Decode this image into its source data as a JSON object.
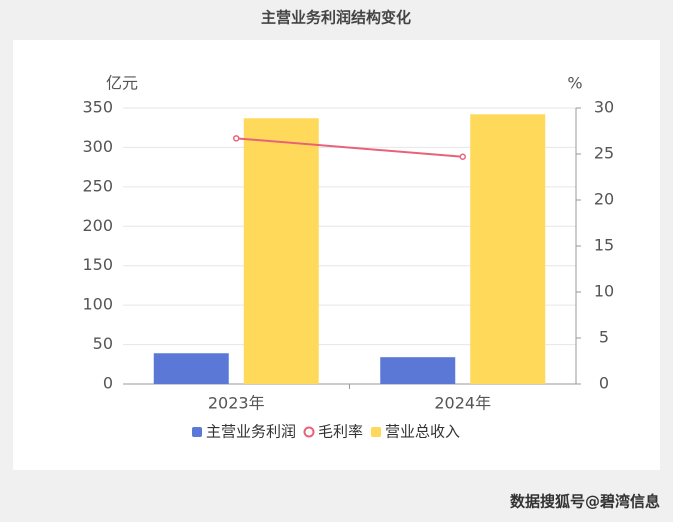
{
  "chart_data": {
    "type": "bar-line",
    "title": "主营业务利润结构变化",
    "y_label": "亿元",
    "y2_label": "%",
    "categories": [
      "2023年",
      "2024年"
    ],
    "series": [
      {
        "name": "主营业务利润",
        "color": "#5b78d6",
        "type": "bar",
        "values": [
          39,
          34
        ]
      },
      {
        "name": "毛利率",
        "color": "#e8637a",
        "type": "line",
        "axis": "y2",
        "values": [
          26.7,
          24.7
        ]
      },
      {
        "name": "营业总收入",
        "color": "#ffd95a",
        "type": "bar",
        "values": [
          337,
          342
        ]
      }
    ],
    "ylim": [
      0,
      350
    ],
    "yticks": [
      0,
      50,
      100,
      150,
      200,
      250,
      300,
      350
    ],
    "y2lim": [
      0,
      30
    ],
    "y2ticks": [
      0,
      5,
      10,
      15,
      20,
      25,
      30
    ],
    "grid": true,
    "legend": "bottom",
    "source": "数据搜狐号@碧湾信息"
  }
}
